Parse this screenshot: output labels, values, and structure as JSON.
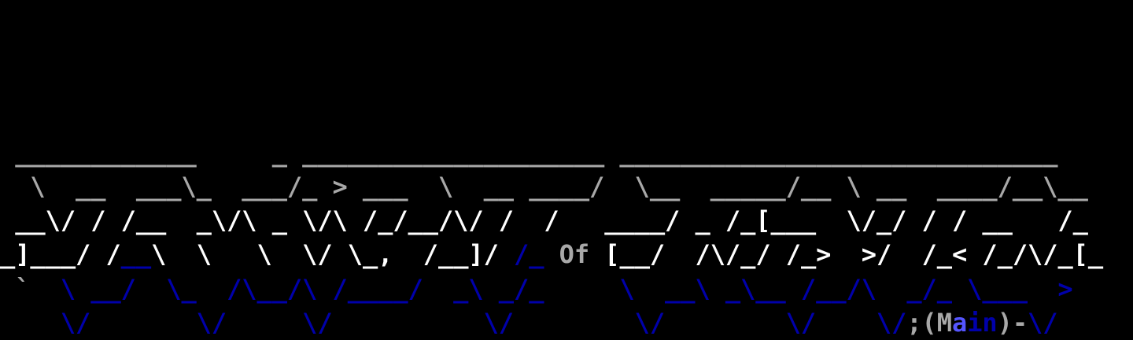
{
  "palette": {
    "gray": "#a8a8a8",
    "white": "#ffffff",
    "blue": "#0000aa",
    "lightblue": "#5555ff"
  },
  "title_art": {
    "rows": [
      [
        {
          "t": " ____________     _ ____________________ _____________________________",
          "c": "gray"
        }
      ],
      [
        {
          "t": "  \\  __  ___\\_  ___/_ > ___  \\  __ ____/  \\__  _____/__ \\ __  ____/__\\__",
          "c": "gray"
        }
      ],
      [
        {
          "t": " __\\/ / /__  _\\/\\ _ \\/\\ /_/__/\\/ /  /   ____/ _ /_[___  \\/_/ / / __   /_",
          "c": "white"
        }
      ],
      [
        {
          "t": "_]___/ /",
          "c": "white"
        },
        {
          "t": "__",
          "c": "blue"
        },
        {
          "t": "\\  \\   \\  \\/ \\_,  /__]/ ",
          "c": "white"
        },
        {
          "t": "/_",
          "c": "blue"
        },
        {
          "t": " ",
          "c": "white"
        },
        {
          "t": "Of",
          "c": "gray"
        },
        {
          "t": " [__/  /\\/_/ /_>  >/  /_< /_/\\/_[_",
          "c": "white"
        }
      ],
      [
        {
          "t": " `",
          "c": "gray"
        },
        {
          "t": "  \\ __/  \\_  /\\__/\\ /____/  _\\ _/_     \\  __\\ _\\__ /__/\\  _/_ \\___  >",
          "c": "blue"
        }
      ],
      [
        {
          "t": "    \\/       \\/     \\/          \\/        \\/        \\/    \\/",
          "c": "blue"
        },
        {
          "t": ";(M",
          "c": "gray"
        },
        {
          "t": "a",
          "c": "lightblue"
        },
        {
          "t": "in",
          "c": "blue"
        },
        {
          "t": ")-",
          "c": "gray"
        },
        {
          "t": "\\/",
          "c": "blue"
        }
      ]
    ]
  }
}
